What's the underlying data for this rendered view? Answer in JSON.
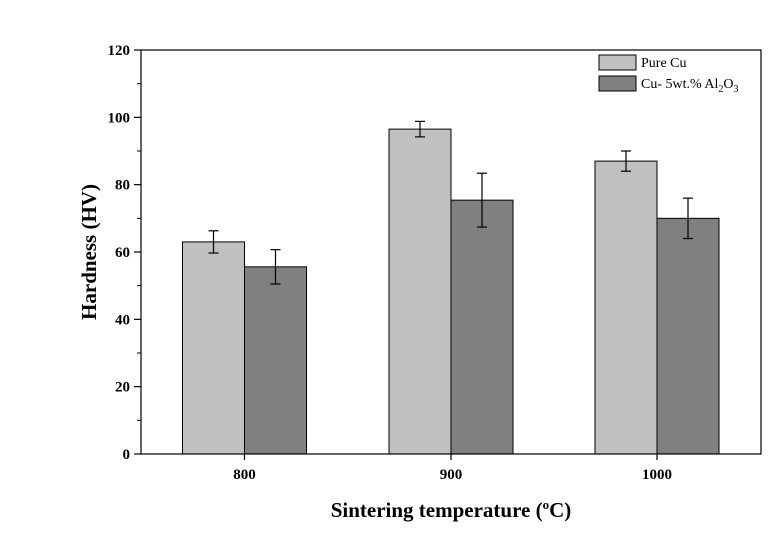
{
  "chart_data": {
    "type": "bar",
    "title": "",
    "categories": [
      "800",
      "900",
      "1000"
    ],
    "series": [
      {
        "name": "Pure Cu",
        "color": "#c0c0c0",
        "values": [
          63,
          96.5,
          87
        ],
        "errors": [
          3.3,
          2.3,
          3.0
        ]
      },
      {
        "name": "Cu- 5wt.% Al2O3",
        "color": "#808080",
        "values": [
          55.6,
          75.4,
          70
        ],
        "errors": [
          5.1,
          8.0,
          6.0
        ]
      }
    ],
    "xlabel": "Sintering temperature (oC)",
    "ylabel": "Hardness (HV)",
    "ylim": [
      0,
      120
    ],
    "yticks": [
      "0",
      "20",
      "40",
      "60",
      "80",
      "100",
      "120"
    ],
    "grid": false,
    "legend_position": "top-right"
  },
  "labels": {
    "xlabel_main": "Sintering temperature (",
    "xlabel_sup": "o",
    "xlabel_tail": "C)",
    "legend_1": "Pure Cu",
    "legend_2_main": "Cu- 5wt.% Al",
    "legend_2_sub1": "2",
    "legend_2_mid": "O",
    "legend_2_sub2": "3"
  }
}
